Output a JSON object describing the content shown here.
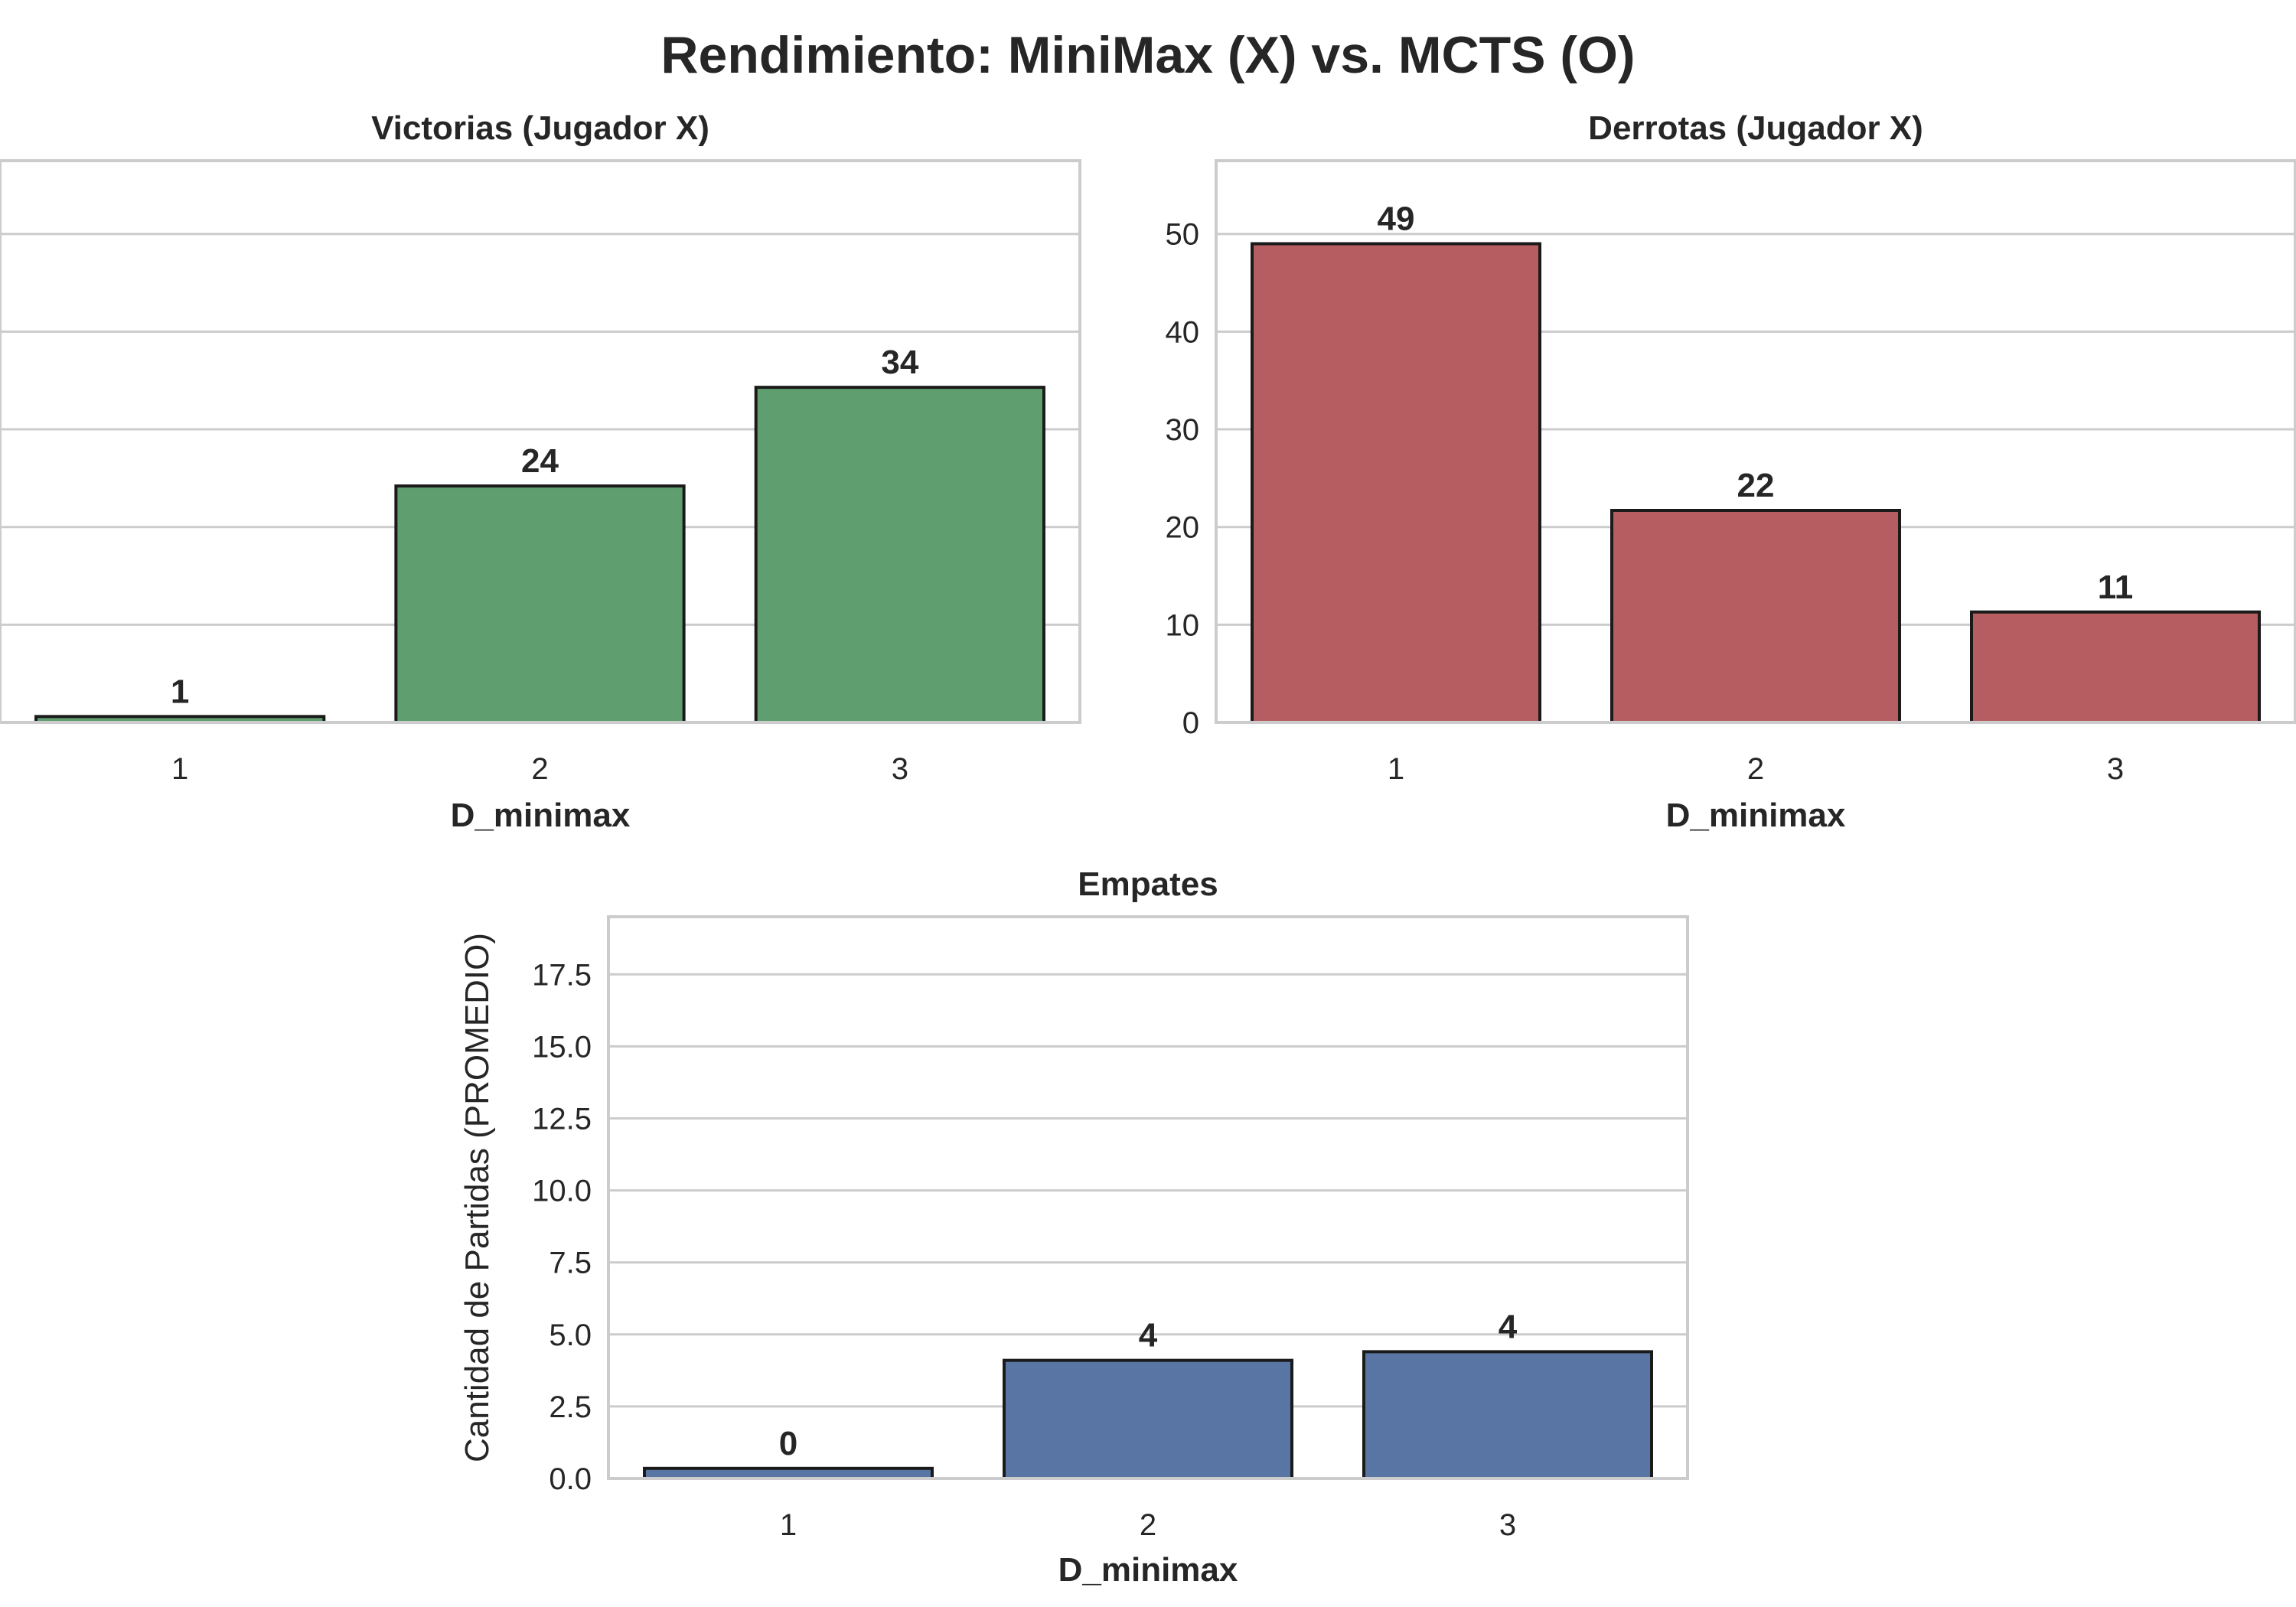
{
  "figure": {
    "title": "Rendimiento: MiniMax (X) vs. MCTS (O)"
  },
  "chart_data": [
    {
      "type": "bar",
      "title": "Victorias (Jugador X)",
      "xlabel": "D_minimax",
      "ylabel": "",
      "categories": [
        "1",
        "2",
        "3"
      ],
      "values": [
        0.6,
        24.2,
        34.3
      ],
      "data_labels": [
        "1",
        "24",
        "34"
      ],
      "ylim": [
        0,
        57.5
      ],
      "yticks": [
        0,
        10,
        20,
        30,
        40,
        50
      ],
      "ytick_labels_visible": false,
      "grid": true,
      "color": "#5f9e6e"
    },
    {
      "type": "bar",
      "title": "Derrotas (Jugador X)",
      "xlabel": "D_minimax",
      "ylabel": "",
      "categories": [
        "1",
        "2",
        "3"
      ],
      "values": [
        49.0,
        21.7,
        11.3
      ],
      "data_labels": [
        "49",
        "22",
        "11"
      ],
      "ylim": [
        0,
        57.5
      ],
      "yticks": [
        0,
        10,
        20,
        30,
        40,
        50
      ],
      "ytick_labels": [
        "0",
        "10",
        "20",
        "30",
        "40",
        "50"
      ],
      "ytick_labels_visible": true,
      "grid": true,
      "color": "#b55d60"
    },
    {
      "type": "bar",
      "title": "Empates",
      "xlabel": "D_minimax",
      "ylabel": "Cantidad de Partidas (PROMEDIO)",
      "categories": [
        "1",
        "2",
        "3"
      ],
      "values": [
        0.35,
        4.1,
        4.4
      ],
      "data_labels": [
        "0",
        "4",
        "4"
      ],
      "ylim": [
        0,
        19.5
      ],
      "yticks": [
        0,
        2.5,
        5,
        7.5,
        10,
        12.5,
        15,
        17.5
      ],
      "ytick_labels": [
        "0.0",
        "2.5",
        "5.0",
        "7.5",
        "10.0",
        "12.5",
        "15.0",
        "17.5"
      ],
      "ytick_labels_visible": true,
      "grid": true,
      "color": "#5975a4"
    }
  ]
}
